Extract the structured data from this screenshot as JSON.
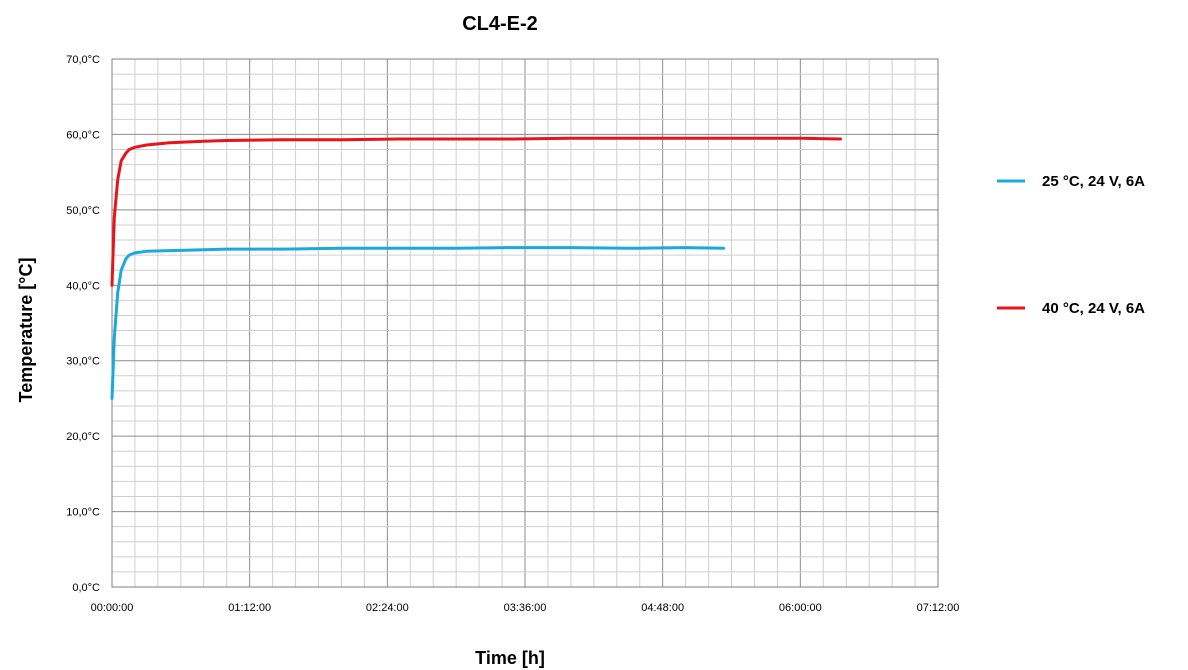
{
  "chart_data": {
    "type": "line",
    "title": "CL4-E-2",
    "xlabel": "Time [h]",
    "ylabel": "Temperature [°C]",
    "xlim_hours": [
      0,
      7.2
    ],
    "ylim": [
      0,
      70
    ],
    "x_ticks": [
      "00:00:00",
      "01:12:00",
      "02:24:00",
      "03:36:00",
      "04:48:00",
      "06:00:00",
      "07:12:00"
    ],
    "y_ticks": [
      "0,0°C",
      "10,0°C",
      "20,0°C",
      "30,0°C",
      "40,0°C",
      "50,0°C",
      "60,0°C",
      "70,0°C"
    ],
    "grid": true,
    "legend_position": "right",
    "series": [
      {
        "name": "25 °C, 24 V, 6A",
        "color": "#1ba9dd",
        "x_hours": [
          0,
          0.02,
          0.05,
          0.08,
          0.12,
          0.15,
          0.2,
          0.3,
          0.5,
          0.8,
          1.0,
          1.5,
          2.0,
          2.5,
          3.0,
          3.5,
          4.0,
          4.5,
          5.0,
          5.33
        ],
        "values": [
          25.0,
          33.0,
          39.0,
          42.0,
          43.5,
          44.0,
          44.3,
          44.5,
          44.6,
          44.7,
          44.8,
          44.8,
          44.9,
          44.9,
          44.9,
          45.0,
          45.0,
          44.9,
          45.0,
          44.9
        ]
      },
      {
        "name": "40 °C, 24 V, 6A",
        "color": "#e8141b",
        "x_hours": [
          0,
          0.02,
          0.05,
          0.08,
          0.12,
          0.15,
          0.2,
          0.3,
          0.5,
          0.8,
          1.0,
          1.5,
          2.0,
          2.5,
          3.0,
          3.5,
          4.0,
          4.5,
          5.0,
          5.5,
          6.0,
          6.35
        ],
        "values": [
          40.0,
          49.0,
          54.0,
          56.5,
          57.5,
          58.0,
          58.3,
          58.6,
          58.9,
          59.1,
          59.2,
          59.3,
          59.3,
          59.4,
          59.4,
          59.4,
          59.5,
          59.5,
          59.5,
          59.5,
          59.5,
          59.4
        ]
      }
    ]
  }
}
